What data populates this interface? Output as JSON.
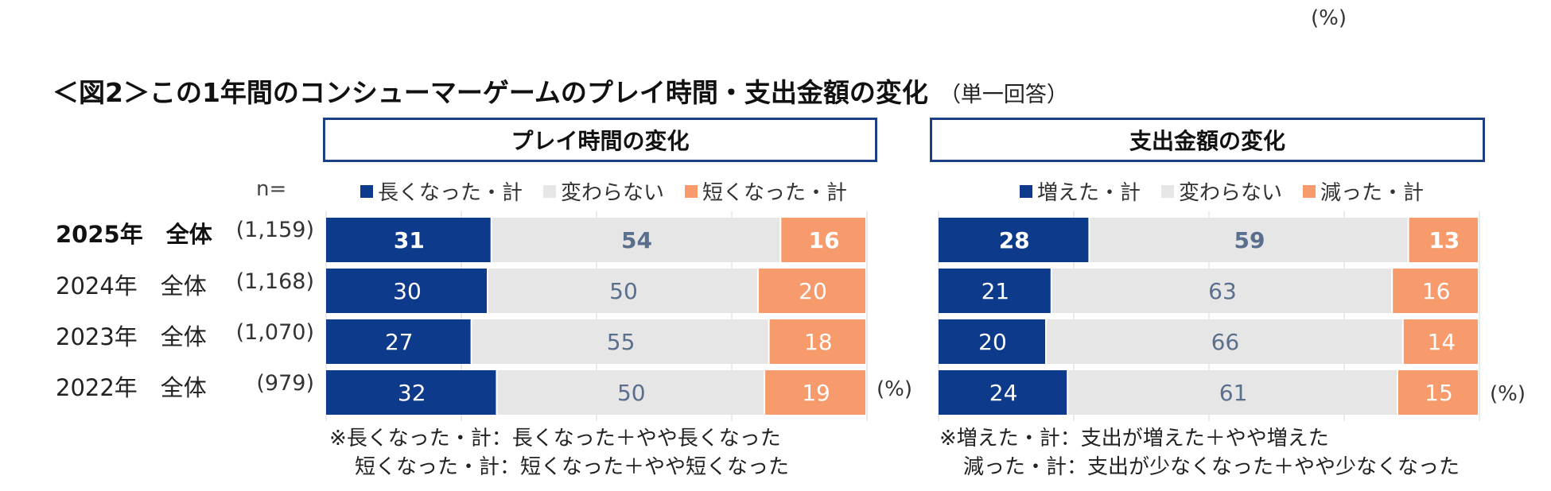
{
  "top_unit": "(%)",
  "title": "＜図2＞この1年間のコンシューマーゲームのプレイ時間・支出金額の変化",
  "title_sub": "（単一回答）",
  "n_header": "n=",
  "rows": [
    {
      "label": "2025年　全体",
      "n": "(1,159)",
      "bold": true
    },
    {
      "label": "2024年　全体",
      "n": "(1,168)",
      "bold": false
    },
    {
      "label": "2023年　全体",
      "n": "(1,070)",
      "bold": false
    },
    {
      "label": "2022年　全体",
      "n": "(979)",
      "bold": false
    }
  ],
  "unit_label": "(%)",
  "colors": {
    "navy": "#0e3a8c",
    "gray": "#e6e6e6",
    "orange": "#f79a6c",
    "mid_text": "#5a6f8e",
    "border": "#1d3f86"
  },
  "chart_data": [
    {
      "type": "bar",
      "stacked": true,
      "orientation": "horizontal",
      "title": "プレイ時間の変化",
      "categories": [
        "2025年　全体",
        "2024年　全体",
        "2023年　全体",
        "2022年　全体"
      ],
      "series": [
        {
          "name": "長くなった・計",
          "color": "#0e3a8c",
          "values": [
            31,
            30,
            27,
            32
          ]
        },
        {
          "name": "変わらない",
          "color": "#e6e6e6",
          "values": [
            54,
            50,
            55,
            50
          ]
        },
        {
          "name": "短くなった・計",
          "color": "#f79a6c",
          "values": [
            16,
            20,
            18,
            19
          ]
        }
      ],
      "xlim": [
        0,
        100
      ],
      "legend": "top",
      "notes": [
        "※長くなった・計：長くなった＋やや長くなった",
        "短くなった・計：短くなった＋やや短くなった"
      ]
    },
    {
      "type": "bar",
      "stacked": true,
      "orientation": "horizontal",
      "title": "支出金額の変化",
      "categories": [
        "2025年　全体",
        "2024年　全体",
        "2023年　全体",
        "2022年　全体"
      ],
      "series": [
        {
          "name": "増えた・計",
          "color": "#0e3a8c",
          "values": [
            28,
            21,
            20,
            24
          ]
        },
        {
          "name": "変わらない",
          "color": "#e6e6e6",
          "values": [
            59,
            63,
            66,
            61
          ]
        },
        {
          "name": "減った・計",
          "color": "#f79a6c",
          "values": [
            13,
            16,
            14,
            15
          ]
        }
      ],
      "xlim": [
        0,
        100
      ],
      "legend": "top",
      "notes": [
        "※増えた・計：支出が増えた＋やや増えた",
        "減った・計：支出が少なくなった＋やや少なくなった"
      ]
    }
  ]
}
